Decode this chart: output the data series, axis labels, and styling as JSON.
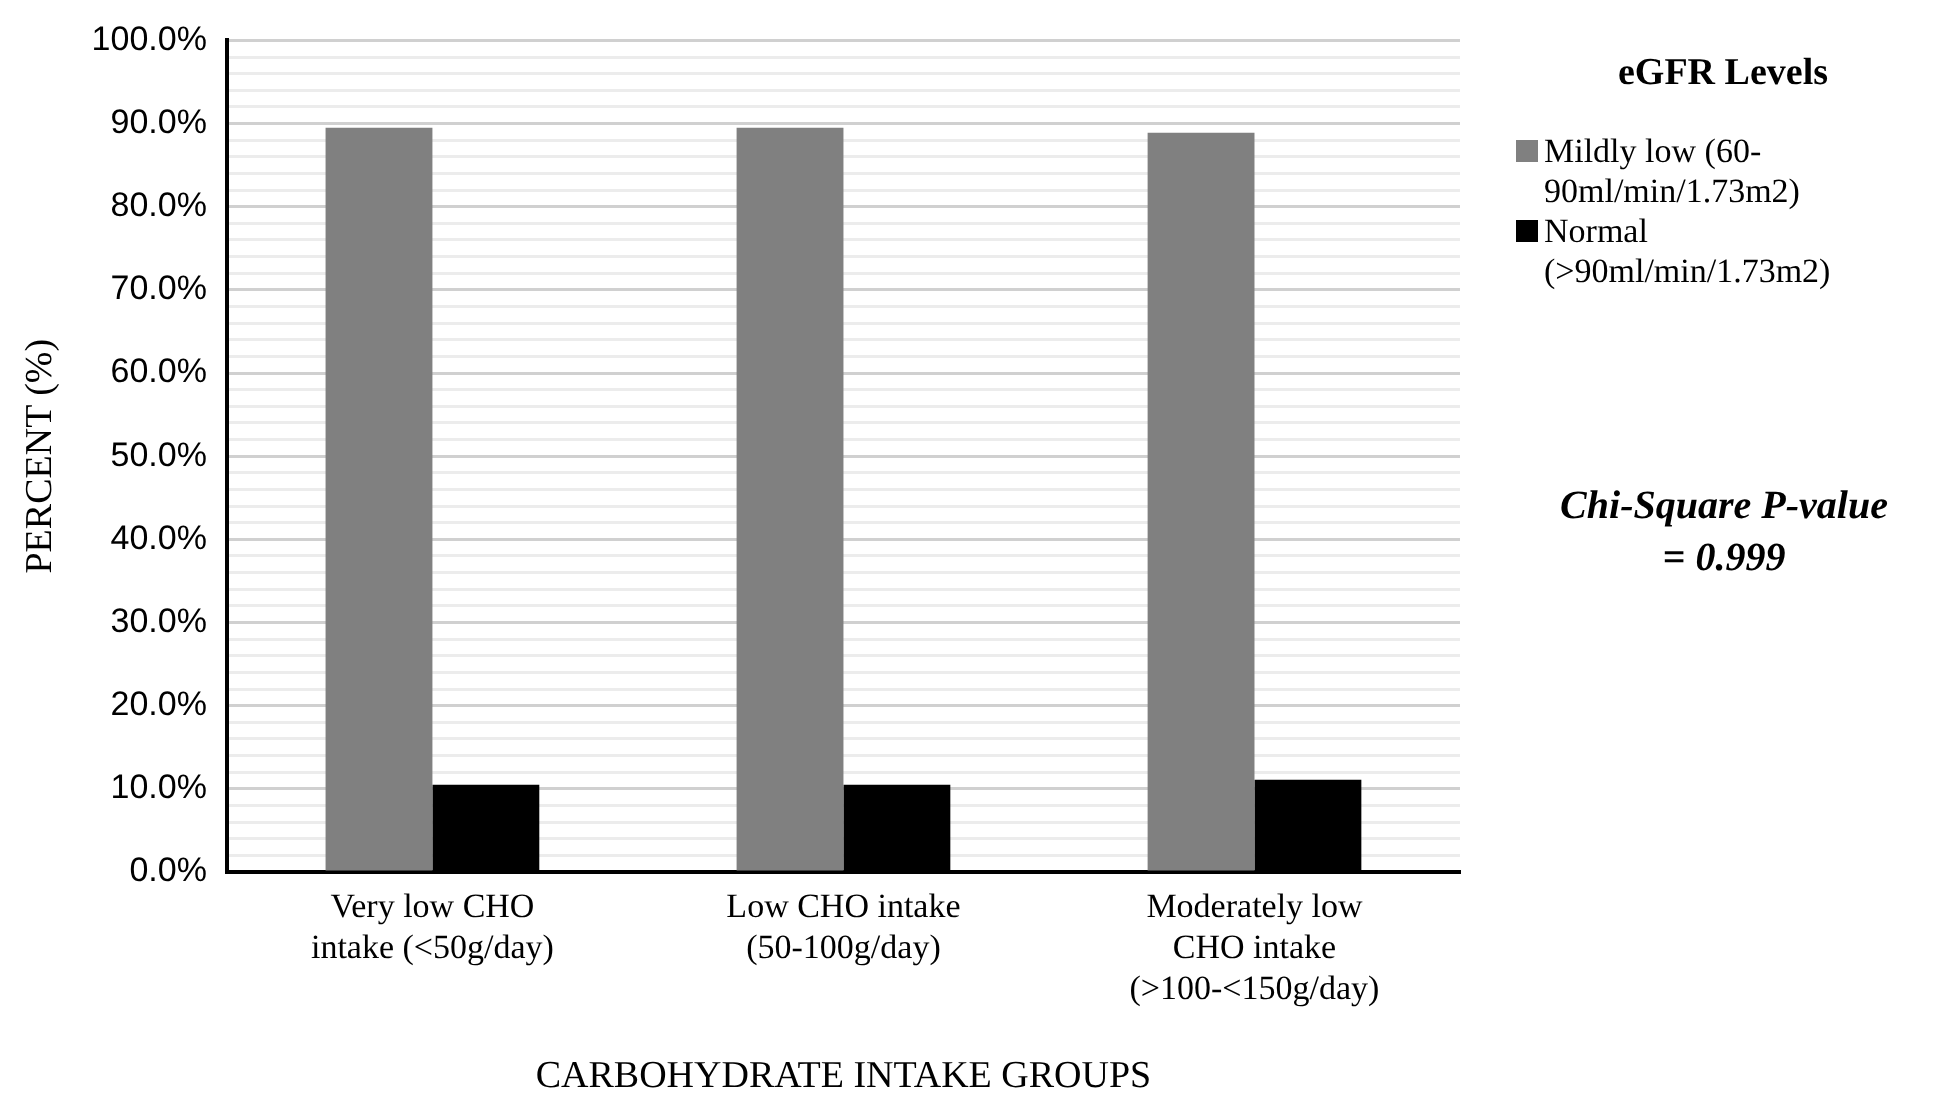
{
  "chart_data": {
    "type": "bar",
    "xlabel": "CARBOHYDRATE INTAKE GROUPS",
    "ylabel": "PERCENT (%)",
    "legend_title": "eGFR Levels",
    "legend": "right",
    "categories": [
      "Very low CHO intake (<50g/day)",
      "Low CHO intake (50-100g/day)",
      "Moderately low CHO intake (>100-<150g/day)"
    ],
    "series": [
      {
        "name": "Mildly low (60-90ml/min/1.73m2)",
        "color": "#808080",
        "values": [
          89.5,
          89.5,
          88.9
        ]
      },
      {
        "name": "Normal (>90ml/min/1.73m2)",
        "color": "#000000",
        "values": [
          10.5,
          10.5,
          11.1
        ]
      }
    ],
    "ylim": [
      0,
      100
    ],
    "yticks": [
      {
        "value": 0,
        "label": "0.0%"
      },
      {
        "value": 2,
        "label": null
      },
      {
        "value": 4,
        "label": null
      },
      {
        "value": 6,
        "label": null
      },
      {
        "value": 8,
        "label": null
      },
      {
        "value": 10,
        "label": "10.0%"
      },
      {
        "value": 12,
        "label": null
      },
      {
        "value": 14,
        "label": null
      },
      {
        "value": 16,
        "label": null
      },
      {
        "value": 18,
        "label": null
      },
      {
        "value": 20,
        "label": "20.0%"
      },
      {
        "value": 22,
        "label": null
      },
      {
        "value": 24,
        "label": null
      },
      {
        "value": 26,
        "label": null
      },
      {
        "value": 28,
        "label": null
      },
      {
        "value": 30,
        "label": "30.0%"
      },
      {
        "value": 32,
        "label": null
      },
      {
        "value": 34,
        "label": null
      },
      {
        "value": 36,
        "label": null
      },
      {
        "value": 38,
        "label": null
      },
      {
        "value": 40,
        "label": "40.0%"
      },
      {
        "value": 42,
        "label": null
      },
      {
        "value": 44,
        "label": null
      },
      {
        "value": 46,
        "label": null
      },
      {
        "value": 48,
        "label": null
      },
      {
        "value": 50,
        "label": "50.0%"
      },
      {
        "value": 52,
        "label": null
      },
      {
        "value": 54,
        "label": null
      },
      {
        "value": 56,
        "label": null
      },
      {
        "value": 58,
        "label": null
      },
      {
        "value": 60,
        "label": "60.0%"
      },
      {
        "value": 62,
        "label": null
      },
      {
        "value": 64,
        "label": null
      },
      {
        "value": 66,
        "label": null
      },
      {
        "value": 68,
        "label": null
      },
      {
        "value": 70,
        "label": "70.0%"
      },
      {
        "value": 72,
        "label": null
      },
      {
        "value": 74,
        "label": null
      },
      {
        "value": 76,
        "label": null
      },
      {
        "value": 78,
        "label": null
      },
      {
        "value": 80,
        "label": "80.0%"
      },
      {
        "value": 82,
        "label": null
      },
      {
        "value": 84,
        "label": null
      },
      {
        "value": 86,
        "label": null
      },
      {
        "value": 88,
        "label": null
      },
      {
        "value": 90,
        "label": "90.0%"
      },
      {
        "value": 92,
        "label": null
      },
      {
        "value": 94,
        "label": null
      },
      {
        "value": 96,
        "label": null
      },
      {
        "value": 98,
        "label": null
      },
      {
        "value": 100,
        "label": "100.0%"
      }
    ],
    "grid": "y",
    "annotations": [
      "Chi-Square P-value = 0.999"
    ]
  }
}
